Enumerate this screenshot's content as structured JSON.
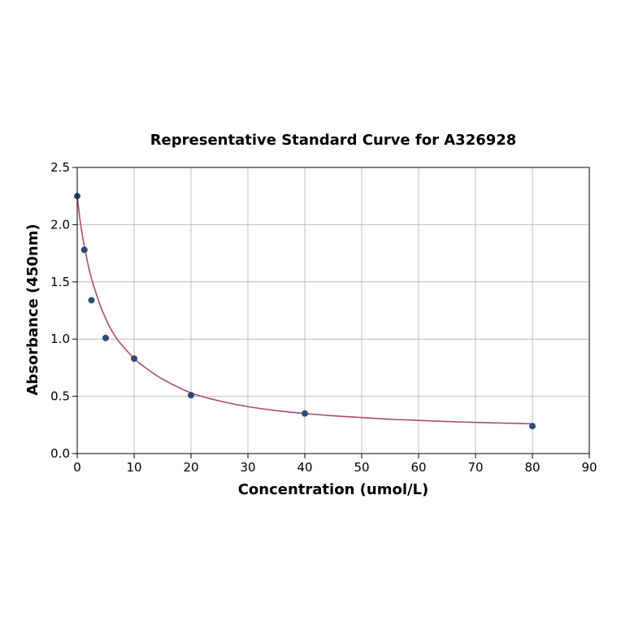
{
  "chart_data": {
    "type": "scatter",
    "title": "Representative Standard Curve for A326928",
    "xlabel": "Concentration (umol/L)",
    "ylabel": "Absorbance (450nm)",
    "xlim": [
      0,
      90
    ],
    "ylim": [
      0,
      2.5
    ],
    "xticks": [
      0,
      10,
      20,
      30,
      40,
      50,
      60,
      70,
      80,
      90
    ],
    "yticks": [
      0.0,
      0.5,
      1.0,
      1.5,
      2.0,
      2.5
    ],
    "xtick_labels": [
      "0",
      "10",
      "20",
      "30",
      "40",
      "50",
      "60",
      "70",
      "80",
      "90"
    ],
    "ytick_labels": [
      "0.0",
      "0.5",
      "1.0",
      "1.5",
      "2.0",
      "2.5"
    ],
    "grid": true,
    "series": [
      {
        "x": [
          0,
          1.25,
          2.5,
          5,
          10,
          20,
          40,
          80
        ],
        "y": [
          2.25,
          1.78,
          1.34,
          1.01,
          0.83,
          0.51,
          0.35,
          0.24
        ]
      }
    ],
    "fit_curve": {
      "x": [
        0,
        0.5,
        1,
        1.5,
        2,
        2.5,
        3,
        4,
        5,
        6,
        7,
        8,
        10,
        12,
        15,
        20,
        25,
        30,
        35,
        40,
        45,
        50,
        55,
        60,
        65,
        70,
        75,
        80
      ],
      "y": [
        2.25,
        2.04,
        1.88,
        1.75,
        1.63,
        1.53,
        1.45,
        1.3,
        1.18,
        1.08,
        1.0,
        0.94,
        0.83,
        0.75,
        0.65,
        0.53,
        0.46,
        0.41,
        0.375,
        0.35,
        0.33,
        0.315,
        0.3,
        0.29,
        0.28,
        0.272,
        0.266,
        0.26
      ]
    },
    "colors": {
      "points": "#2c4a74",
      "curve": "#b04a6e",
      "grid": "#b0b0b0",
      "axis": "#000000"
    }
  }
}
